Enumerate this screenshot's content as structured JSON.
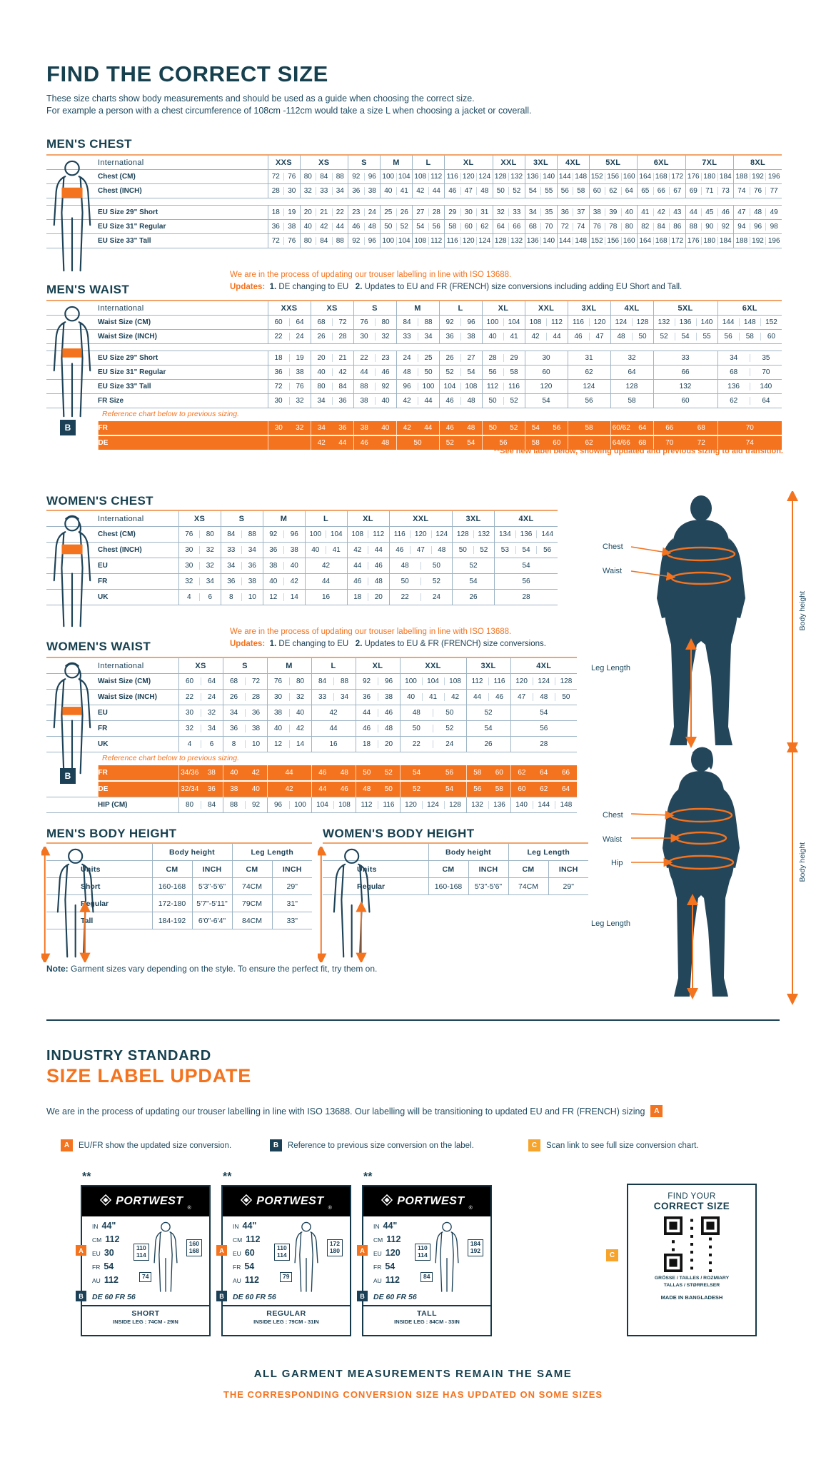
{
  "page": {
    "title": "FIND THE CORRECT SIZE",
    "intro1": "These size charts show body measurements and should be used as a guide when choosing the correct size.",
    "intro2": "For example a person with a chest circumference of 108cm -112cm would take a size L when choosing a jacket or coverall.",
    "note_label": "Note:",
    "note_text": "Garment sizes vary depending on the style. To ensure the perfect fit, try them on."
  },
  "colors": {
    "navy": "#1C4156",
    "orange": "#F4731F",
    "amber": "#F6A42C"
  },
  "mens_chest": {
    "heading": "MEN'S CHEST",
    "table": {
      "first_header": "International",
      "columns": [
        {
          "label": "XXS",
          "span": 2
        },
        {
          "label": "XS",
          "span": 3
        },
        {
          "label": "S",
          "span": 2
        },
        {
          "label": "M",
          "span": 2
        },
        {
          "label": "L",
          "span": 2
        },
        {
          "label": "XL",
          "span": 3
        },
        {
          "label": "XXL",
          "span": 2
        },
        {
          "label": "3XL",
          "span": 2
        },
        {
          "label": "4XL",
          "span": 2
        },
        {
          "label": "5XL",
          "span": 3
        },
        {
          "label": "6XL",
          "span": 3
        },
        {
          "label": "7XL",
          "span": 3
        },
        {
          "label": "8XL",
          "span": 3
        }
      ],
      "rows": [
        {
          "label": "Chest (CM)",
          "cells": [
            "72 76",
            "80 84 88",
            "92 96",
            "100 104",
            "108 112",
            "116 120 124",
            "128 132",
            "136 140",
            "144 148",
            "152 156 160",
            "164 168 172",
            "176 180 184",
            "188 192 196"
          ]
        },
        {
          "label": "Chest (INCH)",
          "cells": [
            "28 30",
            "32 33 34",
            "36 38",
            "40 41",
            "42 44",
            "46 47 48",
            "50 52",
            "54 55",
            "56 58",
            "60 62 64",
            "65 66 67",
            "69 71 73",
            "74 76 77"
          ]
        },
        {
          "type": "gap"
        },
        {
          "label": "EU Size 29\" Short",
          "cells": [
            "18 19",
            "20 21 22",
            "23 24",
            "25 26",
            "27 28",
            "29 30 31",
            "32 33",
            "34 35",
            "36 37",
            "38 39 40",
            "41 42 43",
            "44 45 46",
            "47 48 49"
          ]
        },
        {
          "label": "EU Size 31\" Regular",
          "cells": [
            "36 38",
            "40 42 44",
            "46 48",
            "50 52",
            "54 56",
            "58 60 62",
            "64 66",
            "68 70",
            "72 74",
            "76 78 80",
            "82 84 86",
            "88 90 92",
            "94 96 98"
          ]
        },
        {
          "label": "EU Size 33\" Tall",
          "cells": [
            "72 76",
            "80 84 88",
            "92 96",
            "100 104",
            "108 112",
            "116 120 124",
            "128 132",
            "136 140",
            "144 148",
            "152 156 160",
            "164 168 172",
            "176 180 184",
            "188 192 196"
          ]
        }
      ]
    }
  },
  "mens_waist": {
    "heading": "MEN'S WAIST",
    "note1": "We are in the process of updating our trouser labelling in line with ISO 13688.",
    "updates_label": "Updates:",
    "update1_num": "1.",
    "update1_text": "DE changing to EU",
    "update2_num": "2.",
    "update2_text": "Updates to EU and FR (FRENCH) size conversions including adding EU Short and Tall.",
    "badge_b": "B",
    "footnote": "**See new label below, showing updated and previous sizing to aid transition.",
    "table": {
      "first_header": "International",
      "columns": [
        {
          "label": "XXS",
          "span": 2
        },
        {
          "label": "XS",
          "span": 2
        },
        {
          "label": "S",
          "span": 2
        },
        {
          "label": "M",
          "span": 2
        },
        {
          "label": "L",
          "span": 2
        },
        {
          "label": "XL",
          "span": 2
        },
        {
          "label": "XXL",
          "span": 2
        },
        {
          "label": "3XL",
          "span": 2
        },
        {
          "label": "4XL",
          "span": 2
        },
        {
          "label": "5XL",
          "span": 3
        },
        {
          "label": "6XL",
          "span": 3
        }
      ],
      "rows": [
        {
          "label": "Waist Size (CM)",
          "cells": [
            "60 64",
            "68 72",
            "76 80",
            "84 88",
            "92 96",
            "100 104",
            "108 112",
            "116 120",
            "124 128",
            "132 136 140",
            "144 148 152"
          ]
        },
        {
          "label": "Waist Size (INCH)",
          "cells": [
            "22 24",
            "26 28",
            "30 32",
            "33 34",
            "36 38",
            "40 41",
            "42 44",
            "46 47",
            "48 50",
            "52 54 55",
            "56 58 60"
          ]
        },
        {
          "type": "gap"
        },
        {
          "label": "EU Size 29\" Short",
          "cells": [
            "18 19",
            "20 21",
            "22 23",
            "24 25",
            "26 27",
            "28 29",
            "30",
            "31",
            "32",
            "33",
            "34 35"
          ]
        },
        {
          "label": "EU Size 31\" Regular",
          "cells": [
            "36 38",
            "40 42",
            "44 46",
            "48 50",
            "52 54",
            "56 58",
            "60",
            "62",
            "64",
            "66",
            "68 70"
          ]
        },
        {
          "label": "EU Size 33\" Tall",
          "cells": [
            "72 76",
            "80 84",
            "88 92",
            "96 100",
            "104 108",
            "112 116",
            "120",
            "124",
            "128",
            "132",
            "136 140"
          ]
        },
        {
          "label": "FR Size",
          "cells": [
            "30 32",
            "34 36",
            "38 40",
            "42 44",
            "46 48",
            "50 52",
            "54",
            "56",
            "58",
            "60",
            "62 64"
          ]
        },
        {
          "type": "note",
          "text": "Reference chart below to previous sizing."
        },
        {
          "type": "orange",
          "label": "FR",
          "cells": [
            "30 32",
            "34 36",
            "38 40",
            "42 44",
            "46 48",
            "50 52",
            "54 56",
            "58",
            "60/62 64",
            "66 68",
            "70"
          ]
        },
        {
          "type": "orange",
          "label": "DE",
          "cells": [
            "",
            "42 44",
            "46 48",
            "50",
            "52 54",
            "56",
            "58 60",
            "62",
            "64/66 68",
            "70 72",
            "74"
          ]
        }
      ]
    }
  },
  "womens_chest": {
    "heading": "WOMEN'S CHEST",
    "table": {
      "first_header": "International",
      "columns": [
        {
          "label": "XS",
          "span": 2
        },
        {
          "label": "S",
          "span": 2
        },
        {
          "label": "M",
          "span": 2
        },
        {
          "label": "L",
          "span": 2
        },
        {
          "label": "XL",
          "span": 2
        },
        {
          "label": "XXL",
          "span": 3
        },
        {
          "label": "3XL",
          "span": 2
        },
        {
          "label": "4XL",
          "span": 3
        }
      ],
      "rows": [
        {
          "label": "Chest (CM)",
          "cells": [
            "76 80",
            "84 88",
            "92 96",
            "100 104",
            "108 112",
            "116 120 124",
            "128 132",
            "134 136 144"
          ]
        },
        {
          "label": "Chest (INCH)",
          "cells": [
            "30 32",
            "33 34",
            "36 38",
            "40 41",
            "42 44",
            "46 47 48",
            "50 52",
            "53 54 56"
          ]
        },
        {
          "label": "EU",
          "cells": [
            "30 32",
            "34 36",
            "38 40",
            "42",
            "44 46",
            "48 50",
            "52",
            "54"
          ]
        },
        {
          "label": "FR",
          "cells": [
            "32 34",
            "36 38",
            "40 42",
            "44",
            "46 48",
            "50 52",
            "54",
            "56"
          ]
        },
        {
          "label": "UK",
          "cells": [
            "4 6",
            "8 10",
            "12 14",
            "16",
            "18 20",
            "22 24",
            "26",
            "28"
          ]
        }
      ]
    }
  },
  "womens_waist": {
    "heading": "WOMEN'S WAIST",
    "note1": "We are in the process of updating our trouser labelling in line with ISO 13688.",
    "updates_label": "Updates:",
    "update1_num": "1.",
    "update1_text": "DE changing to EU",
    "update2_num": "2.",
    "update2_text": "Updates to EU & FR (FRENCH) size conversions.",
    "badge_b": "B",
    "table": {
      "first_header": "International",
      "columns": [
        {
          "label": "XS",
          "span": 2
        },
        {
          "label": "S",
          "span": 2
        },
        {
          "label": "M",
          "span": 2
        },
        {
          "label": "L",
          "span": 2
        },
        {
          "label": "XL",
          "span": 2
        },
        {
          "label": "XXL",
          "span": 3
        },
        {
          "label": "3XL",
          "span": 2
        },
        {
          "label": "4XL",
          "span": 3
        }
      ],
      "rows": [
        {
          "label": "Waist Size (CM)",
          "cells": [
            "60 64",
            "68 72",
            "76 80",
            "84 88",
            "92 96",
            "100 104 108",
            "112 116",
            "120 124 128"
          ]
        },
        {
          "label": "Waist Size (INCH)",
          "cells": [
            "22 24",
            "26 28",
            "30 32",
            "33 34",
            "36 38",
            "40 41 42",
            "44 46",
            "47 48 50"
          ]
        },
        {
          "label": "EU",
          "cells": [
            "30 32",
            "34 36",
            "38 40",
            "42",
            "44 46",
            "48 50",
            "52",
            "54"
          ]
        },
        {
          "label": "FR",
          "cells": [
            "32 34",
            "36 38",
            "40 42",
            "44",
            "46 48",
            "50 52",
            "54",
            "56"
          ]
        },
        {
          "label": "UK",
          "cells": [
            "4 6",
            "8 10",
            "12 14",
            "16",
            "18 20",
            "22 24",
            "26",
            "28"
          ]
        },
        {
          "type": "note",
          "text": "Reference chart below to previous sizing."
        },
        {
          "type": "orange",
          "label": "FR",
          "cells": [
            "34/36 38",
            "40 42",
            "44",
            "46 48",
            "50 52",
            "54 56",
            "58 60",
            "62 64 66"
          ]
        },
        {
          "type": "orange",
          "label": "DE",
          "cells": [
            "32/34 36",
            "38 40",
            "42",
            "44 46",
            "48 50",
            "52 54",
            "56 58",
            "60 62 64"
          ]
        },
        {
          "label": "HIP (CM)",
          "cells": [
            "80 84",
            "88 92",
            "96 100",
            "104 108",
            "112 116",
            "120 124 128",
            "132 136",
            "140 144 148"
          ]
        }
      ]
    }
  },
  "mens_body": {
    "heading": "MEN'S BODY HEIGHT",
    "table": {
      "groups": [
        {
          "label": "Body height",
          "span": 2
        },
        {
          "label": "Leg Length",
          "span": 2
        }
      ],
      "first_header": "Units",
      "columns": [
        {
          "label": "CM",
          "span": 1
        },
        {
          "label": "INCH",
          "span": 1
        },
        {
          "label": "CM",
          "span": 1
        },
        {
          "label": "INCH",
          "span": 1
        }
      ],
      "rows": [
        {
          "label": "Short",
          "cells": [
            "160-168",
            "5'3\"-5'6\"",
            "74CM",
            "29\""
          ]
        },
        {
          "label": "Regular",
          "cells": [
            "172-180",
            "5'7\"-5'11\"",
            "79CM",
            "31\""
          ]
        },
        {
          "label": "Tall",
          "cells": [
            "184-192",
            "6'0\"-6'4\"",
            "84CM",
            "33\""
          ]
        }
      ]
    }
  },
  "womens_body": {
    "heading": "WOMEN'S BODY HEIGHT",
    "table": {
      "groups": [
        {
          "label": "Body height",
          "span": 2
        },
        {
          "label": "Leg Length",
          "span": 2
        }
      ],
      "first_header": "Units",
      "columns": [
        {
          "label": "CM",
          "span": 1
        },
        {
          "label": "INCH",
          "span": 1
        },
        {
          "label": "CM",
          "span": 1
        },
        {
          "label": "INCH",
          "span": 1
        }
      ],
      "rows": [
        {
          "label": "Regular",
          "cells": [
            "160-168",
            "5'3\"-5'6\"",
            "74CM",
            "29\""
          ]
        }
      ]
    }
  },
  "diagrams": {
    "male": {
      "chest": "Chest",
      "waist": "Waist",
      "leg": "Leg Length",
      "height": "Body height"
    },
    "female": {
      "chest": "Chest",
      "waist": "Waist",
      "hip": "Hip",
      "leg": "Leg Length",
      "height": "Body height"
    }
  },
  "label_update": {
    "heading1": "INDUSTRY STANDARD",
    "heading2": "SIZE LABEL UPDATE",
    "para": "We are in the process of updating our trouser labelling in line with ISO 13688. Our labelling will be transitioning to updated EU and FR (FRENCH) sizing",
    "badge_a": "A",
    "badge_b": "B",
    "badge_c": "C",
    "legend": [
      {
        "badge": "A",
        "text": "EU/FR show the updated size conversion."
      },
      {
        "badge": "B",
        "text": "Reference to previous size conversion on the label."
      },
      {
        "badge": "C",
        "text": "Scan link to see full size conversion chart."
      }
    ],
    "cards": [
      {
        "stars": "**",
        "brand": "PORTWEST",
        "sizes": [
          {
            "u": "IN",
            "v": "44\""
          },
          {
            "u": "CM",
            "v": "112"
          },
          {
            "u": "EU",
            "v": "30"
          },
          {
            "u": "FR",
            "v": "54"
          },
          {
            "u": "AU",
            "v": "112"
          }
        ],
        "waist_top": "110",
        "waist_bot": "114",
        "h_top": "160",
        "h_bot": "168",
        "leg": "74",
        "defr": "DE 60 FR 56",
        "name": "SHORT",
        "inside": "INSIDE LEG : 74CM - 29IN"
      },
      {
        "stars": "**",
        "brand": "PORTWEST",
        "sizes": [
          {
            "u": "IN",
            "v": "44\""
          },
          {
            "u": "CM",
            "v": "112"
          },
          {
            "u": "EU",
            "v": "60"
          },
          {
            "u": "FR",
            "v": "54"
          },
          {
            "u": "AU",
            "v": "112"
          }
        ],
        "waist_top": "110",
        "waist_bot": "114",
        "h_top": "172",
        "h_bot": "180",
        "leg": "79",
        "defr": "DE 60 FR 56",
        "name": "REGULAR",
        "inside": "INSIDE LEG : 79CM - 31IN"
      },
      {
        "stars": "**",
        "brand": "PORTWEST",
        "sizes": [
          {
            "u": "IN",
            "v": "44\""
          },
          {
            "u": "CM",
            "v": "112"
          },
          {
            "u": "EU",
            "v": "120"
          },
          {
            "u": "FR",
            "v": "54"
          },
          {
            "u": "AU",
            "v": "112"
          }
        ],
        "waist_top": "110",
        "waist_bot": "114",
        "h_top": "184",
        "h_bot": "192",
        "leg": "84",
        "defr": "DE 60 FR 56",
        "name": "TALL",
        "inside": "INSIDE LEG : 84CM - 33IN"
      }
    ]
  },
  "qr_card": {
    "line1": "FIND YOUR",
    "line2": "CORRECT SIZE",
    "langs1": "GRÖSSE / TAILLES / ROZMIARY",
    "langs2": "TALLAS / STØRRELSER",
    "made": "MADE IN BANGLADESH"
  },
  "footer": {
    "line1": "ALL GARMENT MEASUREMENTS REMAIN THE SAME",
    "line2": "THE CORRESPONDING CONVERSION SIZE HAS UPDATED ON SOME SIZES"
  }
}
